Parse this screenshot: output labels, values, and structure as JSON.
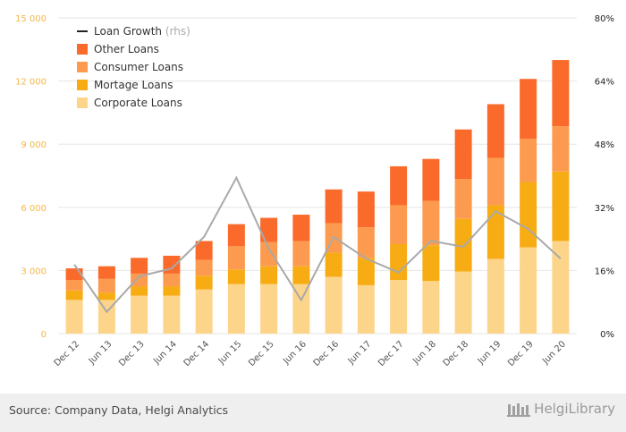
{
  "chart_data": {
    "type": "bar",
    "stacked": true,
    "categories": [
      "Dec 12",
      "Jun 13",
      "Dec 13",
      "Jun 14",
      "Dec 14",
      "Jun 15",
      "Dec 15",
      "Jun 16",
      "Dec 16",
      "Jun 17",
      "Dec 17",
      "Jun 18",
      "Dec 18",
      "Jun 19",
      "Dec 19",
      "Jun 20"
    ],
    "series": [
      {
        "name": "Corporate Loans",
        "color": "#fdd58a",
        "values": [
          1600,
          1600,
          1800,
          1800,
          2100,
          2350,
          2350,
          2350,
          2700,
          2300,
          2550,
          2500,
          2950,
          3550,
          4100,
          4400
        ]
      },
      {
        "name": "Mortage Loans",
        "color": "#f7ac14",
        "values": [
          450,
          350,
          450,
          450,
          650,
          700,
          850,
          850,
          1150,
          1300,
          1700,
          1700,
          2500,
          2550,
          3100,
          3300
        ]
      },
      {
        "name": "Consumer Loans",
        "color": "#fc9b4f",
        "values": [
          500,
          650,
          600,
          600,
          750,
          1100,
          1150,
          1200,
          1400,
          1450,
          1850,
          2100,
          1900,
          2250,
          2050,
          2150
        ]
      },
      {
        "name": "Other Loans",
        "color": "#fa6a2a",
        "values": [
          550,
          600,
          750,
          850,
          900,
          1050,
          1150,
          1250,
          1600,
          1700,
          1850,
          2000,
          2350,
          2550,
          2850,
          3150
        ]
      }
    ],
    "line_series": {
      "name": "Loan Growth",
      "name_suffix": "(rhs)",
      "color": "#a9a9a9",
      "values": [
        17.5,
        5.5,
        14.5,
        16.5,
        24.5,
        39.5,
        21.5,
        8.5,
        24.5,
        19,
        15.5,
        23.5,
        22,
        31,
        26.5,
        19
      ]
    },
    "ylim": [
      0,
      15000
    ],
    "yticks": [
      "0",
      "3 000",
      "6 000",
      "9 000",
      "12 000",
      "15 000"
    ],
    "y2lim": [
      0,
      80
    ],
    "y2ticks": [
      "0%",
      "16%",
      "32%",
      "48%",
      "64%",
      "80%"
    ],
    "legend_position": "top-left",
    "grid": true
  },
  "footer": {
    "source": "Source: Company Data, Helgi Analytics",
    "brand": "HelgiLibrary"
  }
}
